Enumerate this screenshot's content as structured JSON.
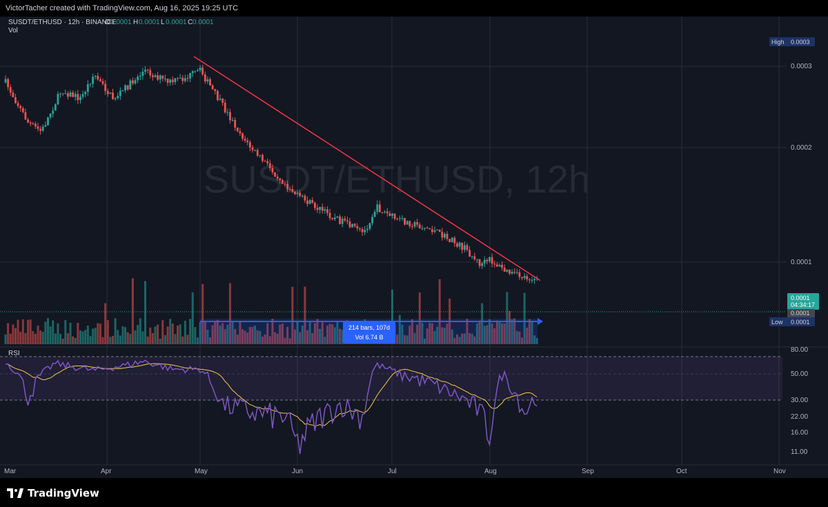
{
  "topbar": {
    "credit": "VictorTacher created with TradingView.com, Aug 16, 2025 19:25 UTC"
  },
  "legend": {
    "symbol": "SUSDT/ETHUSD · 12h · BINANCE",
    "o_label": "O",
    "o_value": "0.0001",
    "h_label": "H",
    "h_value": "0.0001",
    "l_label": "L",
    "l_value": "0.0001",
    "c_label": "C",
    "c_value": "0.0001",
    "vol_label": "Vol"
  },
  "watermark": "SUSDT/ETHUSD, 12h",
  "price_axis": {
    "ticks": [
      "0.0003",
      "0.0002",
      "0.0001"
    ],
    "high_label": "High",
    "high_value": "0.0003",
    "low_label": "Low",
    "low_value": "0.0001",
    "last_price": "0.0001",
    "countdown": "04:34:17",
    "gray_value": "0.0001"
  },
  "range_tool": {
    "line1": "214 bars, 107d",
    "line2": "Vol 6.74 B"
  },
  "rsi": {
    "label": "RSI",
    "ticks": [
      "80.00",
      "50.00",
      "30.00",
      "22.00",
      "16.00",
      "11.00"
    ]
  },
  "time_axis": {
    "labels": [
      "Mar",
      "Apr",
      "May",
      "Jun",
      "Jul",
      "Aug",
      "Sep",
      "Oct",
      "Nov"
    ]
  },
  "footer": {
    "brand": "TradingView"
  },
  "colors": {
    "up": "#26a69a",
    "down": "#ef5350",
    "trendline": "#f23645",
    "rsi": "#7e57c2",
    "rsi_ma": "#f7c948",
    "range": "#2962ff"
  },
  "chart_data": {
    "type": "candlestick",
    "anchors": [
      {
        "x": "Mar 1",
        "y": 0.00028
      },
      {
        "x": "Mar 8",
        "y": 0.00023
      },
      {
        "x": "Mar 12",
        "y": 0.00022
      },
      {
        "x": "Mar 18",
        "y": 0.00027
      },
      {
        "x": "Mar 24",
        "y": 0.00026
      },
      {
        "x": "Mar 28",
        "y": 0.00029
      },
      {
        "x": "Apr 3",
        "y": 0.00026
      },
      {
        "x": "Apr 9",
        "y": 0.00028
      },
      {
        "x": "Apr 13",
        "y": 0.000295
      },
      {
        "x": "Apr 21",
        "y": 0.00028
      },
      {
        "x": "Apr 26",
        "y": 0.000285
      },
      {
        "x": "May 1",
        "y": 0.000295
      },
      {
        "x": "May 10",
        "y": 0.00024
      },
      {
        "x": "May 16",
        "y": 0.000205
      },
      {
        "x": "May 24",
        "y": 0.00018
      },
      {
        "x": "Jun 1",
        "y": 0.000158
      },
      {
        "x": "Jun 12",
        "y": 0.00014
      },
      {
        "x": "Jun 22",
        "y": 0.000125
      },
      {
        "x": "Jun 26",
        "y": 0.000148
      },
      {
        "x": "Jul 2",
        "y": 0.000138
      },
      {
        "x": "Jul 14",
        "y": 0.000128
      },
      {
        "x": "Jul 24",
        "y": 0.000112
      },
      {
        "x": "Jul 29",
        "y": 9.8e-05
      },
      {
        "x": "Aug 1",
        "y": 0.000102
      },
      {
        "x": "Aug 6",
        "y": 9.2e-05
      },
      {
        "x": "Aug 10",
        "y": 8.8e-05
      },
      {
        "x": "Aug 16",
        "y": 8.5e-05
      }
    ],
    "trendline": [
      {
        "x": "Apr 29",
        "y": 0.000312
      },
      {
        "x": "Aug 17",
        "y": 8.4e-05
      }
    ],
    "rsi_series": [
      {
        "x": "Mar 1",
        "y": 72
      },
      {
        "x": "Mar 8",
        "y": 32
      },
      {
        "x": "Mar 16",
        "y": 68
      },
      {
        "x": "Mar 28",
        "y": 56
      },
      {
        "x": "Apr 8",
        "y": 66
      },
      {
        "x": "Apr 13",
        "y": 72
      },
      {
        "x": "Apr 22",
        "y": 58
      },
      {
        "x": "May 1",
        "y": 58
      },
      {
        "x": "May 8",
        "y": 28
      },
      {
        "x": "May 18",
        "y": 24
      },
      {
        "x": "May 28",
        "y": 22
      },
      {
        "x": "Jun 1",
        "y": 12
      },
      {
        "x": "Jun 8",
        "y": 22
      },
      {
        "x": "Jun 15",
        "y": 28
      },
      {
        "x": "Jun 22",
        "y": 22
      },
      {
        "x": "Jun 26",
        "y": 66
      },
      {
        "x": "Jul 4",
        "y": 50
      },
      {
        "x": "Jul 14",
        "y": 42
      },
      {
        "x": "Jul 28",
        "y": 26
      },
      {
        "x": "Aug 1",
        "y": 16
      },
      {
        "x": "Aug 5",
        "y": 52
      },
      {
        "x": "Aug 12",
        "y": 24
      },
      {
        "x": "Aug 16",
        "y": 33
      }
    ],
    "rsi_levels": [
      80,
      50,
      30
    ],
    "range_bars": "214 bars, 107d",
    "range_volume": "Vol 6.74 B"
  }
}
